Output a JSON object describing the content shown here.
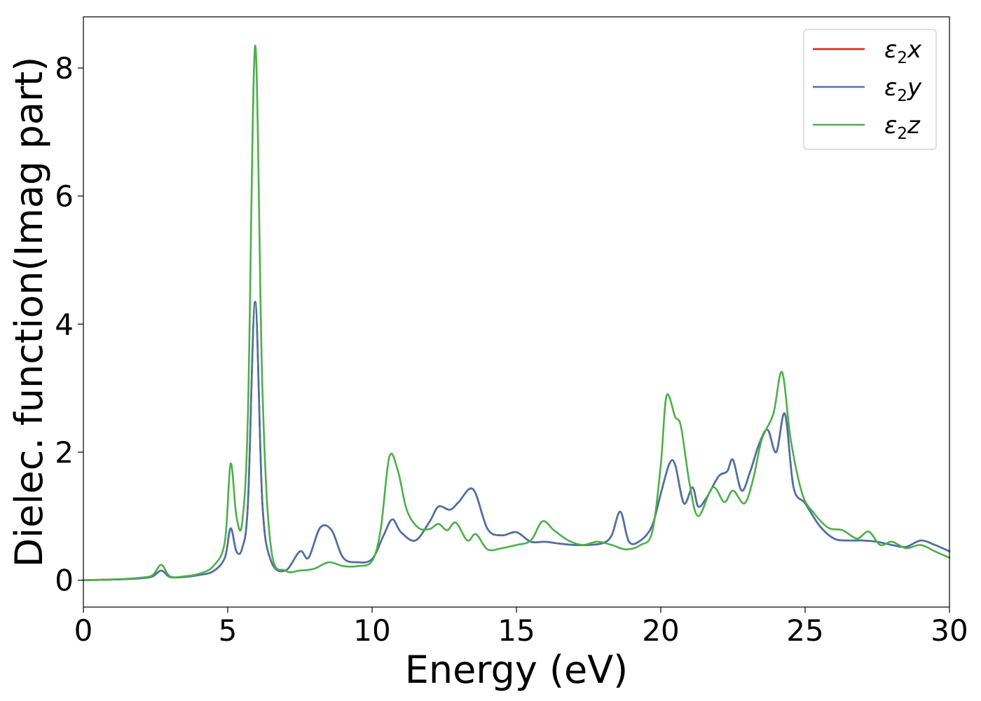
{
  "chart_data": {
    "type": "line",
    "title": "",
    "xlabel": "Energy (eV)",
    "ylabel": "Dielec. function(Imag part)",
    "xlim": [
      0,
      30
    ],
    "ylim": [
      -0.42,
      8.8
    ],
    "xticks": [
      0,
      5,
      10,
      15,
      20,
      25,
      30
    ],
    "yticks": [
      0,
      2,
      4,
      6,
      8
    ],
    "grid": false,
    "legend_position": "top-right",
    "series": [
      {
        "name": "ε₂x",
        "legend_base": "ε",
        "legend_sub": "2",
        "legend_suffix": "x",
        "color": "#e41a1c",
        "x": [
          0,
          1,
          2,
          2.4,
          2.7,
          3.0,
          3.5,
          4.0,
          4.5,
          4.9,
          5.1,
          5.3,
          5.5,
          5.7,
          5.95,
          6.2,
          6.5,
          7.0,
          7.5,
          7.8,
          8.2,
          8.6,
          9.0,
          9.5,
          10.0,
          10.4,
          10.7,
          11.0,
          11.5,
          12.0,
          12.3,
          12.7,
          13.0,
          13.5,
          14.0,
          14.5,
          15.0,
          15.5,
          16.0,
          16.5,
          17.0,
          17.5,
          18.0,
          18.3,
          18.6,
          18.9,
          19.3,
          19.7,
          20.0,
          20.3,
          20.5,
          20.8,
          21.1,
          21.3,
          21.6,
          22.0,
          22.3,
          22.5,
          22.8,
          23.1,
          23.4,
          23.7,
          24.0,
          24.3,
          24.6,
          25.0,
          25.5,
          26.0,
          26.5,
          27.0,
          27.5,
          28.0,
          28.5,
          29.0,
          29.5,
          30.0
        ],
        "y": [
          0,
          0.01,
          0.03,
          0.06,
          0.15,
          0.05,
          0.05,
          0.08,
          0.14,
          0.35,
          0.81,
          0.45,
          0.5,
          1.2,
          4.35,
          1.2,
          0.3,
          0.15,
          0.45,
          0.35,
          0.82,
          0.78,
          0.35,
          0.28,
          0.33,
          0.7,
          0.95,
          0.75,
          0.62,
          0.92,
          1.15,
          1.1,
          1.22,
          1.42,
          0.8,
          0.7,
          0.75,
          0.6,
          0.6,
          0.57,
          0.55,
          0.55,
          0.58,
          0.7,
          1.07,
          0.6,
          0.62,
          0.85,
          1.35,
          1.82,
          1.8,
          1.2,
          1.45,
          1.15,
          1.3,
          1.62,
          1.7,
          1.88,
          1.4,
          1.7,
          2.12,
          2.35,
          2.0,
          2.6,
          1.45,
          1.2,
          0.85,
          0.65,
          0.62,
          0.62,
          0.6,
          0.55,
          0.52,
          0.62,
          0.55,
          0.45
        ]
      },
      {
        "name": "ε₂y",
        "legend_base": "ε",
        "legend_sub": "2",
        "legend_suffix": "y",
        "color": "#4a72a8",
        "x": [
          0,
          1,
          2,
          2.4,
          2.7,
          3.0,
          3.5,
          4.0,
          4.5,
          4.9,
          5.1,
          5.3,
          5.5,
          5.7,
          5.95,
          6.2,
          6.5,
          7.0,
          7.5,
          7.8,
          8.2,
          8.6,
          9.0,
          9.5,
          10.0,
          10.4,
          10.7,
          11.0,
          11.5,
          12.0,
          12.3,
          12.7,
          13.0,
          13.5,
          14.0,
          14.5,
          15.0,
          15.5,
          16.0,
          16.5,
          17.0,
          17.5,
          18.0,
          18.3,
          18.6,
          18.9,
          19.3,
          19.7,
          20.0,
          20.3,
          20.5,
          20.8,
          21.1,
          21.3,
          21.6,
          22.0,
          22.3,
          22.5,
          22.8,
          23.1,
          23.4,
          23.7,
          24.0,
          24.3,
          24.6,
          25.0,
          25.5,
          26.0,
          26.5,
          27.0,
          27.5,
          28.0,
          28.5,
          29.0,
          29.5,
          30.0
        ],
        "y": [
          0,
          0.01,
          0.03,
          0.06,
          0.15,
          0.05,
          0.05,
          0.08,
          0.14,
          0.35,
          0.81,
          0.45,
          0.5,
          1.2,
          4.35,
          1.2,
          0.3,
          0.15,
          0.45,
          0.35,
          0.82,
          0.78,
          0.35,
          0.28,
          0.33,
          0.7,
          0.95,
          0.75,
          0.62,
          0.92,
          1.15,
          1.1,
          1.22,
          1.42,
          0.8,
          0.7,
          0.75,
          0.6,
          0.6,
          0.57,
          0.55,
          0.55,
          0.58,
          0.7,
          1.07,
          0.6,
          0.62,
          0.85,
          1.35,
          1.82,
          1.8,
          1.2,
          1.45,
          1.15,
          1.3,
          1.62,
          1.7,
          1.88,
          1.4,
          1.7,
          2.12,
          2.35,
          2.0,
          2.6,
          1.45,
          1.2,
          0.85,
          0.65,
          0.62,
          0.62,
          0.6,
          0.55,
          0.52,
          0.62,
          0.55,
          0.45
        ]
      },
      {
        "name": "ε₂z",
        "legend_base": "ε",
        "legend_sub": "2",
        "legend_suffix": "z",
        "color": "#4daf4a",
        "x": [
          0,
          1,
          2,
          2.4,
          2.7,
          3.0,
          3.5,
          4.0,
          4.5,
          4.9,
          5.1,
          5.3,
          5.5,
          5.7,
          5.95,
          6.2,
          6.5,
          7.0,
          7.5,
          8.0,
          8.5,
          9.0,
          9.5,
          10.0,
          10.3,
          10.6,
          10.9,
          11.2,
          11.6,
          12.0,
          12.3,
          12.6,
          12.9,
          13.3,
          13.6,
          14.0,
          14.5,
          15.0,
          15.5,
          15.9,
          16.3,
          16.8,
          17.3,
          17.8,
          18.3,
          18.8,
          19.3,
          19.7,
          20.0,
          20.2,
          20.5,
          20.7,
          21.0,
          21.3,
          21.8,
          22.2,
          22.5,
          22.9,
          23.2,
          23.5,
          23.9,
          24.2,
          24.5,
          24.9,
          25.3,
          25.8,
          26.3,
          26.8,
          27.2,
          27.6,
          28.0,
          28.5,
          29.0,
          29.5,
          30.0
        ],
        "y": [
          0,
          0.01,
          0.04,
          0.08,
          0.24,
          0.06,
          0.06,
          0.1,
          0.22,
          0.6,
          1.82,
          1.0,
          0.9,
          2.6,
          8.35,
          3.0,
          0.5,
          0.15,
          0.15,
          0.18,
          0.28,
          0.22,
          0.22,
          0.3,
          0.8,
          1.93,
          1.7,
          1.1,
          0.82,
          0.8,
          0.88,
          0.78,
          0.9,
          0.62,
          0.72,
          0.48,
          0.5,
          0.55,
          0.62,
          0.92,
          0.78,
          0.62,
          0.55,
          0.6,
          0.55,
          0.48,
          0.55,
          0.75,
          1.8,
          2.88,
          2.55,
          2.4,
          1.5,
          1.0,
          1.45,
          1.22,
          1.4,
          1.2,
          1.58,
          2.2,
          2.6,
          3.25,
          2.2,
          1.35,
          1.05,
          0.82,
          0.78,
          0.65,
          0.76,
          0.55,
          0.6,
          0.5,
          0.55,
          0.45,
          0.35
        ]
      }
    ]
  }
}
